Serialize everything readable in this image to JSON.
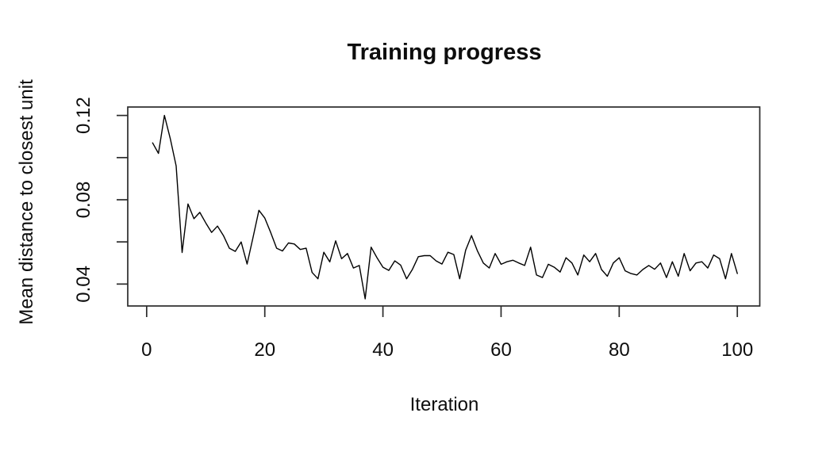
{
  "page": {
    "background": "#ffffff",
    "text_color": "#0d0d0d"
  },
  "chart_data": {
    "type": "line",
    "title": "Training progress",
    "xlabel": "Iteration",
    "ylabel": "Mean distance to closest unit",
    "line_color": "#000000",
    "box_color": "#2b2b2b",
    "grid": false,
    "legend": null,
    "x_start": 1,
    "x_step": 1,
    "xlim": [
      -3.2,
      103.8
    ],
    "ylim": [
      0.0296,
      0.124
    ],
    "x_ticks": [
      {
        "value": 0,
        "label": "0"
      },
      {
        "value": 20,
        "label": "20"
      },
      {
        "value": 40,
        "label": "40"
      },
      {
        "value": 60,
        "label": "60"
      },
      {
        "value": 80,
        "label": "80"
      },
      {
        "value": 100,
        "label": "100"
      }
    ],
    "y_ticks": [
      {
        "value": 0.04,
        "label": "0.04"
      },
      {
        "value": 0.06,
        "label": ""
      },
      {
        "value": 0.08,
        "label": "0.08"
      },
      {
        "value": 0.1,
        "label": ""
      },
      {
        "value": 0.12,
        "label": "0.12"
      }
    ],
    "values": [
      0.107,
      0.102,
      0.12,
      0.109,
      0.096,
      0.055,
      0.078,
      0.071,
      0.074,
      0.069,
      0.0645,
      0.0675,
      0.063,
      0.057,
      0.0555,
      0.06,
      0.0495,
      0.062,
      0.075,
      0.0713,
      0.0645,
      0.057,
      0.0557,
      0.0595,
      0.059,
      0.0564,
      0.057,
      0.0455,
      0.0425,
      0.0551,
      0.0505,
      0.0605,
      0.052,
      0.0545,
      0.0476,
      0.0488,
      0.033,
      0.0575,
      0.0525,
      0.048,
      0.0465,
      0.051,
      0.049,
      0.0425,
      0.047,
      0.053,
      0.0535,
      0.0535,
      0.051,
      0.0495,
      0.0551,
      0.054,
      0.0425,
      0.056,
      0.063,
      0.0557,
      0.05,
      0.0476,
      0.0545,
      0.0494,
      0.0506,
      0.0513,
      0.05,
      0.0488,
      0.0575,
      0.0443,
      0.0431,
      0.0494,
      0.048,
      0.0457,
      0.0525,
      0.05,
      0.0443,
      0.0538,
      0.0506,
      0.0545,
      0.0469,
      0.0437,
      0.05,
      0.0525,
      0.0463,
      0.045,
      0.0443,
      0.0469,
      0.0488,
      0.047,
      0.05,
      0.0431,
      0.0506,
      0.0437,
      0.0545,
      0.0463,
      0.05,
      0.0506,
      0.0476,
      0.0538,
      0.052,
      0.0425,
      0.0545,
      0.045
    ]
  }
}
